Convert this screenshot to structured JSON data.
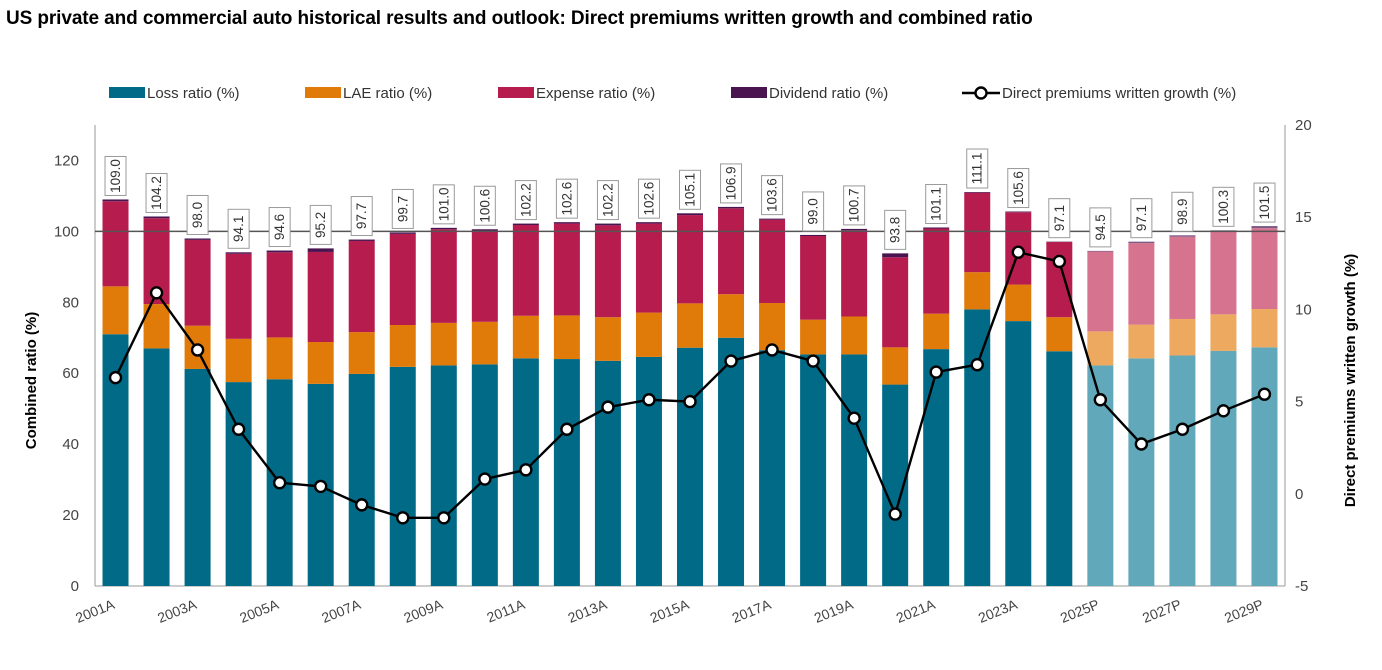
{
  "title": "US private and commercial auto historical results and outlook: Direct premiums written growth and combined ratio",
  "colors": {
    "loss": "#006a87",
    "lae": "#e07b0a",
    "expense": "#b71c4e",
    "dividend": "#4a1450",
    "loss_p": "#62a8bb",
    "lae_p": "#eda95f",
    "expense_p": "#d6738f",
    "dividend_p": "#7d5a84",
    "line": "#000000",
    "refline": "#555555",
    "axis": "#999999"
  },
  "chart_data": {
    "type": "bar",
    "stacked": true,
    "title": "US private and commercial auto historical results and outlook: Direct premiums written growth and combined ratio",
    "ylabel": "Combined ratio (%)",
    "y2label": "Direct premiums written growth (%)",
    "ylim": [
      0,
      130
    ],
    "y2lim": [
      -5,
      20
    ],
    "yticks": [
      0,
      20,
      40,
      60,
      80,
      100,
      120
    ],
    "y2ticks": [
      -5,
      0,
      5,
      10,
      15,
      20
    ],
    "reference_line": 100,
    "categories": [
      "2001A",
      "2002A",
      "2003A",
      "2004A",
      "2005A",
      "2006A",
      "2007A",
      "2008A",
      "2009A",
      "2010A",
      "2011A",
      "2012A",
      "2013A",
      "2014A",
      "2015A",
      "2016A",
      "2017A",
      "2018A",
      "2019A",
      "2020A",
      "2021A",
      "2022A",
      "2023A",
      "2024A",
      "2025P",
      "2026P",
      "2027P",
      "2028P",
      "2029P"
    ],
    "xtick_labels": [
      "2001A",
      "",
      "2003A",
      "",
      "2005A",
      "",
      "2007A",
      "",
      "2009A",
      "",
      "2011A",
      "",
      "2013A",
      "",
      "2015A",
      "",
      "2017A",
      "",
      "2019A",
      "",
      "2021A",
      "",
      "2023A",
      "",
      "2025P",
      "",
      "2027P",
      "",
      "2029P"
    ],
    "projected_from_index": 24,
    "series": [
      {
        "name": "Loss ratio (%)",
        "color_key": "loss",
        "values": [
          71.0,
          67.0,
          61.2,
          57.5,
          58.3,
          57.0,
          59.8,
          61.8,
          62.2,
          62.5,
          64.2,
          64.0,
          63.5,
          64.6,
          67.2,
          70.0,
          66.5,
          65.3,
          65.3,
          56.8,
          66.8,
          78.0,
          74.7,
          66.2,
          62.2,
          64.2,
          65.0,
          66.3,
          67.3
        ]
      },
      {
        "name": "LAE ratio (%)",
        "color_key": "lae",
        "values": [
          13.5,
          12.5,
          12.2,
          12.2,
          11.8,
          11.8,
          11.8,
          11.8,
          12.0,
          12.0,
          12.0,
          12.3,
          12.3,
          12.5,
          12.5,
          12.3,
          13.3,
          9.8,
          10.7,
          10.5,
          10.0,
          10.5,
          10.3,
          9.6,
          9.6,
          9.5,
          10.3,
          10.3,
          10.8
        ]
      },
      {
        "name": "Expense ratio (%)",
        "color_key": "expense",
        "values": [
          24.0,
          24.2,
          24.2,
          24.0,
          24.0,
          25.4,
          25.7,
          25.7,
          26.4,
          25.7,
          25.6,
          25.9,
          25.9,
          25.1,
          24.9,
          24.2,
          23.5,
          23.6,
          24.3,
          25.4,
          24.0,
          22.4,
          20.4,
          21.2,
          22.5,
          23.0,
          23.2,
          23.3,
          22.8
        ]
      },
      {
        "name": "Dividend ratio (%)",
        "color_key": "dividend",
        "values": [
          0.5,
          0.5,
          0.4,
          0.4,
          0.5,
          1.0,
          0.4,
          0.4,
          0.4,
          0.4,
          0.4,
          0.4,
          0.5,
          0.4,
          0.5,
          0.4,
          0.3,
          0.3,
          0.4,
          1.1,
          0.3,
          0.2,
          0.2,
          0.1,
          0.2,
          0.4,
          0.4,
          0.4,
          0.6
        ]
      }
    ],
    "totals": [
      "109.0",
      "104.2",
      "98.0",
      "94.1",
      "94.6",
      "95.2",
      "97.7",
      "99.7",
      "101.0",
      "100.6",
      "102.2",
      "102.6",
      "102.2",
      "102.6",
      "105.1",
      "106.9",
      "103.6",
      "99.0",
      "100.7",
      "93.8",
      "101.1",
      "111.1",
      "105.6",
      "97.1",
      "94.5",
      "97.1",
      "98.9",
      "100.3",
      "101.5"
    ],
    "line_series": {
      "name": "Direct premiums written growth (%)",
      "axis": "right",
      "values": [
        6.3,
        10.9,
        7.8,
        3.5,
        0.6,
        0.4,
        -0.6,
        -1.3,
        -1.3,
        0.8,
        1.3,
        3.5,
        4.7,
        5.1,
        5.0,
        7.2,
        7.8,
        7.2,
        4.1,
        -1.1,
        6.6,
        7.0,
        13.1,
        12.6,
        5.1,
        2.7,
        3.5,
        4.5,
        5.4
      ]
    },
    "legend": {
      "position": "top",
      "items": [
        "Loss ratio (%)",
        "LAE ratio (%)",
        "Expense ratio (%)",
        "Dividend ratio (%)",
        "Direct premiums written growth (%)"
      ]
    }
  }
}
